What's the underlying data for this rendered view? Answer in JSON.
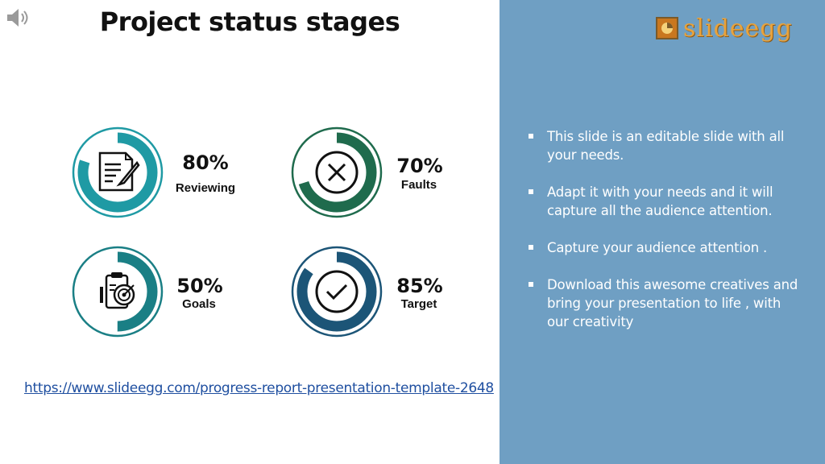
{
  "title": "Project status stages",
  "logo": {
    "text": "slideegg"
  },
  "stats": [
    {
      "percent": "80%",
      "label": "Reviewing",
      "value": 80,
      "icon": "document-edit-icon",
      "color": "#1f9aa4"
    },
    {
      "percent": "70%",
      "label": "Faults",
      "value": 70,
      "icon": "x-circle-icon",
      "color": "#1f6b4d"
    },
    {
      "percent": "50%",
      "label": "Goals",
      "value": 50,
      "icon": "target-clipboard-icon",
      "color": "#1a7f85"
    },
    {
      "percent": "85%",
      "label": "Target",
      "value": 85,
      "icon": "checkmark-circle-icon",
      "color": "#1c5577"
    }
  ],
  "link": "https://www.slideegg.com/progress-report-presentation-template-2648",
  "bullets": [
    "This slide is an editable slide with all your needs.",
    "Adapt it with your needs and it will capture all the audience attention.",
    "Capture your audience attention .",
    "Download this awesome creatives and bring your presentation to life , with our creativity"
  ],
  "colors": {
    "panel": "#6f9fc3",
    "link": "#1f4fa0",
    "logo": "#e8a33d"
  }
}
